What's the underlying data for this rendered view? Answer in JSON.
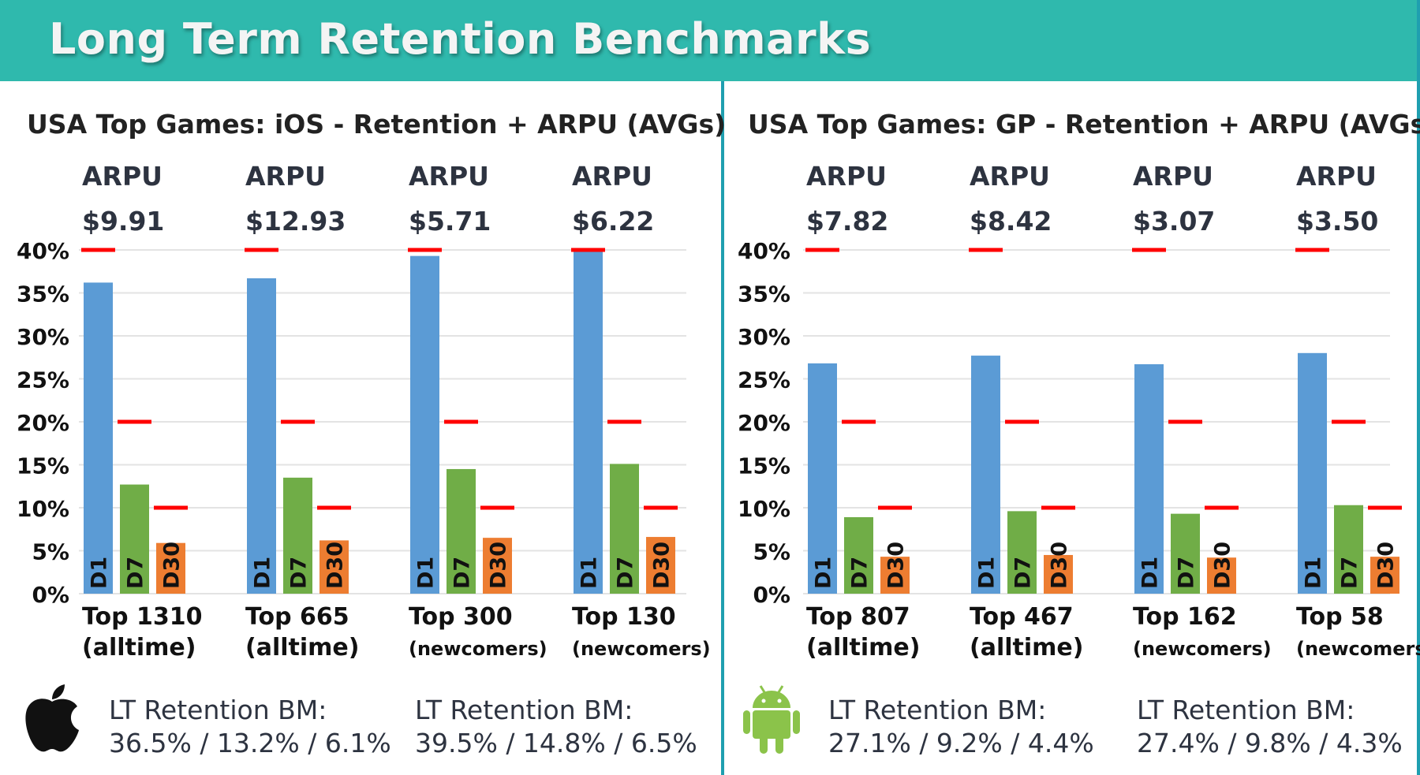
{
  "header": {
    "title": "Long Term Retention Benchmarks"
  },
  "colors": {
    "header": "#2fb9ad",
    "d1": "#5b9bd5",
    "d7": "#70ad47",
    "d30": "#ed7d31",
    "benchmark": "#ff0000",
    "divider": "#1f9fb0"
  },
  "chart_data": [
    {
      "type": "bar",
      "title": "USA Top Games: iOS - Retention + ARPU (AVGs)",
      "categories": [
        [
          "Top 1310",
          "(alltime)"
        ],
        [
          "Top 665",
          "(alltime)"
        ],
        [
          "Top 300",
          "(newcomers)"
        ],
        [
          "Top 130",
          "(newcomers)"
        ]
      ],
      "arpu_label": "ARPU",
      "arpu": [
        "$9.91",
        "$12.93",
        "$5.71",
        "$6.22"
      ],
      "series": [
        {
          "name": "D1",
          "values": [
            36.2,
            36.7,
            39.3,
            39.9
          ]
        },
        {
          "name": "D7",
          "values": [
            12.7,
            13.5,
            14.5,
            15.1
          ]
        },
        {
          "name": "D30",
          "values": [
            5.9,
            6.2,
            6.5,
            6.6
          ]
        }
      ],
      "benchmarks": {
        "D1": 40,
        "D7": 20,
        "D30": 10
      },
      "yticks": [
        "0%",
        "5%",
        "10%",
        "15%",
        "20%",
        "25%",
        "30%",
        "35%",
        "40%"
      ],
      "ylim": [
        0,
        40
      ],
      "grid": true,
      "platform_icon": "apple-icon",
      "lt_bm": [
        {
          "label": "LT Retention BM:",
          "value": "36.5% / 13.2% / 6.1%"
        },
        {
          "label": "LT Retention BM:",
          "value": "39.5% / 14.8% / 6.5%"
        }
      ]
    },
    {
      "type": "bar",
      "title": "USA Top Games: GP - Retention + ARPU (AVGs)",
      "categories": [
        [
          "Top 807",
          "(alltime)"
        ],
        [
          "Top 467",
          "(alltime)"
        ],
        [
          "Top 162",
          "(newcomers)"
        ],
        [
          "Top 58",
          "(newcomers)"
        ]
      ],
      "arpu_label": "ARPU",
      "arpu": [
        "$7.82",
        "$8.42",
        "$3.07",
        "$3.50"
      ],
      "series": [
        {
          "name": "D1",
          "values": [
            26.8,
            27.7,
            26.7,
            28.0
          ]
        },
        {
          "name": "D7",
          "values": [
            8.9,
            9.6,
            9.3,
            10.3
          ]
        },
        {
          "name": "D30",
          "values": [
            4.3,
            4.5,
            4.2,
            4.3
          ]
        }
      ],
      "benchmarks": {
        "D1": 40,
        "D7": 20,
        "D30": 10
      },
      "yticks": [
        "0%",
        "5%",
        "10%",
        "15%",
        "20%",
        "25%",
        "30%",
        "35%",
        "40%"
      ],
      "ylim": [
        0,
        40
      ],
      "grid": true,
      "platform_icon": "android-icon",
      "lt_bm": [
        {
          "label": "LT Retention BM:",
          "value": "27.1% / 9.2% / 4.4%"
        },
        {
          "label": "LT Retention BM:",
          "value": "27.4% / 9.8% / 4.3%"
        }
      ]
    }
  ]
}
